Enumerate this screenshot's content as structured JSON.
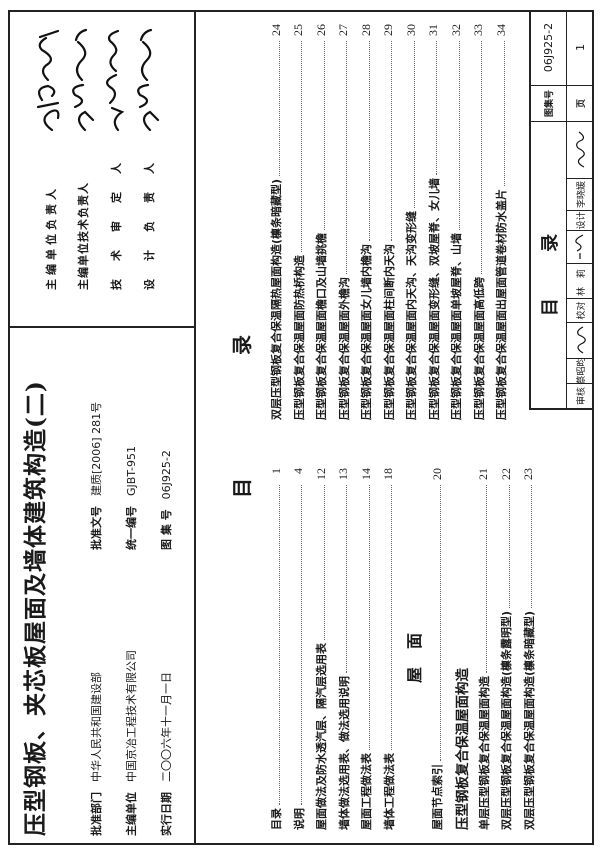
{
  "cover": {
    "title": "压型钢板、夹芯板屋面及墙体建筑构造(二)",
    "info": [
      {
        "label": "批准部门",
        "value": "中华人民共和国建设部",
        "label2": "批准文号",
        "value2": "建质[2006] 281号"
      },
      {
        "label": "主编单位",
        "value": "中国京冶工程技术有限公司",
        "label2": "统一编号",
        "value2": "GJBT-951"
      },
      {
        "label": "实行日期",
        "value": "二〇〇六年十一月一日",
        "label2": "图 集 号",
        "value2": "06J925-2"
      }
    ]
  },
  "signatures": [
    {
      "role": "主编单位负责人"
    },
    {
      "role": "主编单位技术负责人"
    },
    {
      "role": "技术审定人"
    },
    {
      "role": "设计负责人"
    }
  ],
  "toc": {
    "heading_left": "目",
    "heading_right": "录",
    "left": [
      {
        "text": "目录",
        "page": "1"
      },
      {
        "text": "说明",
        "page": "4"
      },
      {
        "text": "屋面做法及防水透汽层、隔汽层选用表",
        "page": "12"
      },
      {
        "text": "墙体做法选用表、做法选用说明",
        "page": "13"
      },
      {
        "text": "屋面工程做法表",
        "page": "14"
      },
      {
        "text": "墙体工程做法表",
        "page": "18"
      },
      {
        "section": "屋面"
      },
      {
        "text": "屋面节点索引",
        "page": "20"
      },
      {
        "subhead": "压型钢板复合保温屋面构造"
      },
      {
        "text": "单层压型钢板复合保温屋面构造",
        "page": "21"
      },
      {
        "text": "双层压型钢板复合保温屋面构造(檩条露明型)",
        "page": "22"
      },
      {
        "text": "双层压型钢板复合保温屋面构造(檩条暗藏型)",
        "page": "23"
      }
    ],
    "right": [
      {
        "text": "双层压型钢板复合保温隔热屋面构造(檩条暗藏型)",
        "page": "24"
      },
      {
        "text": "压型钢板复合保温屋面防热桥构造",
        "page": "25"
      },
      {
        "text": "压型钢板复合保温屋面檐口及山墙挑檐",
        "page": "26"
      },
      {
        "text": "压型钢板复合保温屋面外檐沟",
        "page": "27"
      },
      {
        "text": "压型钢板复合保温屋面女儿墙内檐沟",
        "page": "28"
      },
      {
        "text": "压型钢板复合保温屋面柱间断内天沟",
        "page": "29"
      },
      {
        "text": "压型钢板复合保温屋面内天沟、天沟变形缝",
        "page": "30"
      },
      {
        "text": "压型钢板复合保温屋面变形缝、双坡屋脊、女儿墙",
        "page": "31"
      },
      {
        "text": "压型钢板复合保温屋面单坡屋脊、山墙",
        "page": "32"
      },
      {
        "text": "压型钢板复合保温屋面高低跨",
        "page": "33"
      },
      {
        "text": "压型钢板复合保温屋面出屋面管道卷材防水盖片",
        "page": "34"
      }
    ]
  },
  "title_block": {
    "title": "目  录",
    "atlas_label": "图集号",
    "atlas_no": "06J925-2",
    "page_label": "页",
    "page_no": "1",
    "review_label": "审核",
    "reviewer": "蔡昭昀",
    "check_label": "校对",
    "checker": "林 莉",
    "design_label": "设计",
    "designer": "李晓媛"
  }
}
